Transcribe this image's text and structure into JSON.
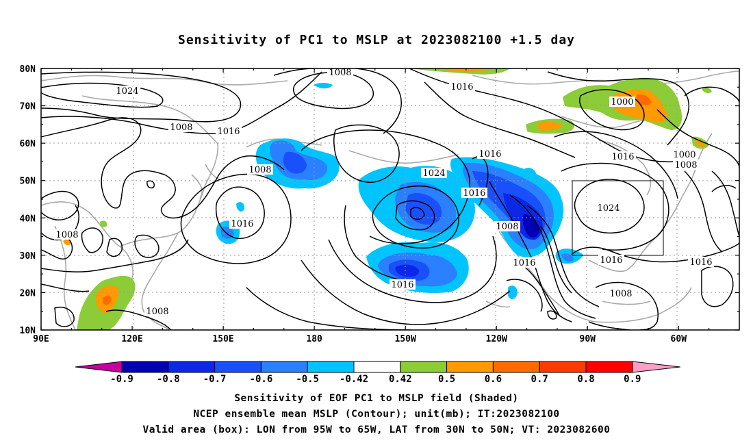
{
  "title": "Sensitivity of PC1 to MSLP at 2023082100 +1.5 day",
  "map": {
    "lon_labels": [
      "90E",
      "120E",
      "150E",
      "180",
      "150W",
      "120W",
      "90W",
      "60W"
    ],
    "lat_labels": [
      "80N",
      "70N",
      "60N",
      "50N",
      "40N",
      "30N",
      "20N",
      "10N"
    ],
    "valid_box": {
      "lon_w": -95,
      "lon_e": -65,
      "lat_s": 30,
      "lat_n": 50
    },
    "contour_labels": [
      "1024",
      "1008",
      "1008",
      "1016",
      "1008",
      "1016",
      "1008",
      "1024",
      "1016",
      "1016",
      "1016",
      "1008",
      "1016",
      "1000",
      "1000",
      "1008",
      "1016",
      "1024",
      "1016",
      "1016",
      "1008",
      "1008",
      "1016"
    ],
    "colors": {
      "coast": "#a9a9a9",
      "contour": "#000000",
      "grid": "#9a9a9a"
    }
  },
  "colorbar": {
    "labels": [
      "-0.9",
      "-0.8",
      "-0.7",
      "-0.6",
      "-0.5",
      "-0.42",
      "0.42",
      "0.5",
      "0.6",
      "0.7",
      "0.8",
      "0.9"
    ],
    "colors": [
      "#c8009e",
      "#0000b4",
      "#0a28e6",
      "#1a50fa",
      "#2a80ff",
      "#00c4ff",
      "#ffffff",
      "#8ccc38",
      "#ff9a00",
      "#ff6a00",
      "#ff3a00",
      "#ff0000",
      "#ff9ec6"
    ]
  },
  "captions": [
    "Sensitivity of EOF PC1 to MSLP field (Shaded)",
    "NCEP ensemble mean MSLP (Contour); unit(mb); IT:2023082100",
    "Valid area (box): LON from 95W to 65W, LAT from 30N to 50N; VT: 2023082600"
  ]
}
